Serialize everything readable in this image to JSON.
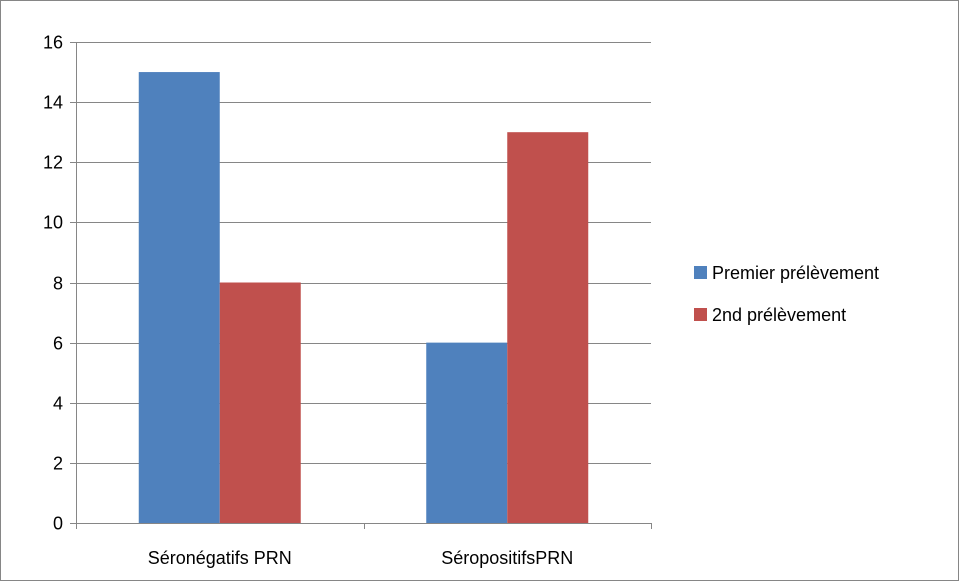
{
  "chart_data": {
    "type": "bar",
    "categories": [
      "Séronégatifs PRN",
      "SéropositifsPRN"
    ],
    "series": [
      {
        "name": "Premier prélèvement",
        "values": [
          15,
          6
        ],
        "color": "#4F81BD"
      },
      {
        "name": "2nd prélèvement",
        "values": [
          8,
          13
        ],
        "color": "#C0504D"
      }
    ],
    "ylim": [
      0,
      16
    ],
    "yticks": [
      0,
      2,
      4,
      6,
      8,
      10,
      12,
      14,
      16
    ],
    "grid": true,
    "legend_position": "right",
    "colors": {
      "gridline": "#868686",
      "axis": "#868686",
      "border": "#868686"
    }
  }
}
